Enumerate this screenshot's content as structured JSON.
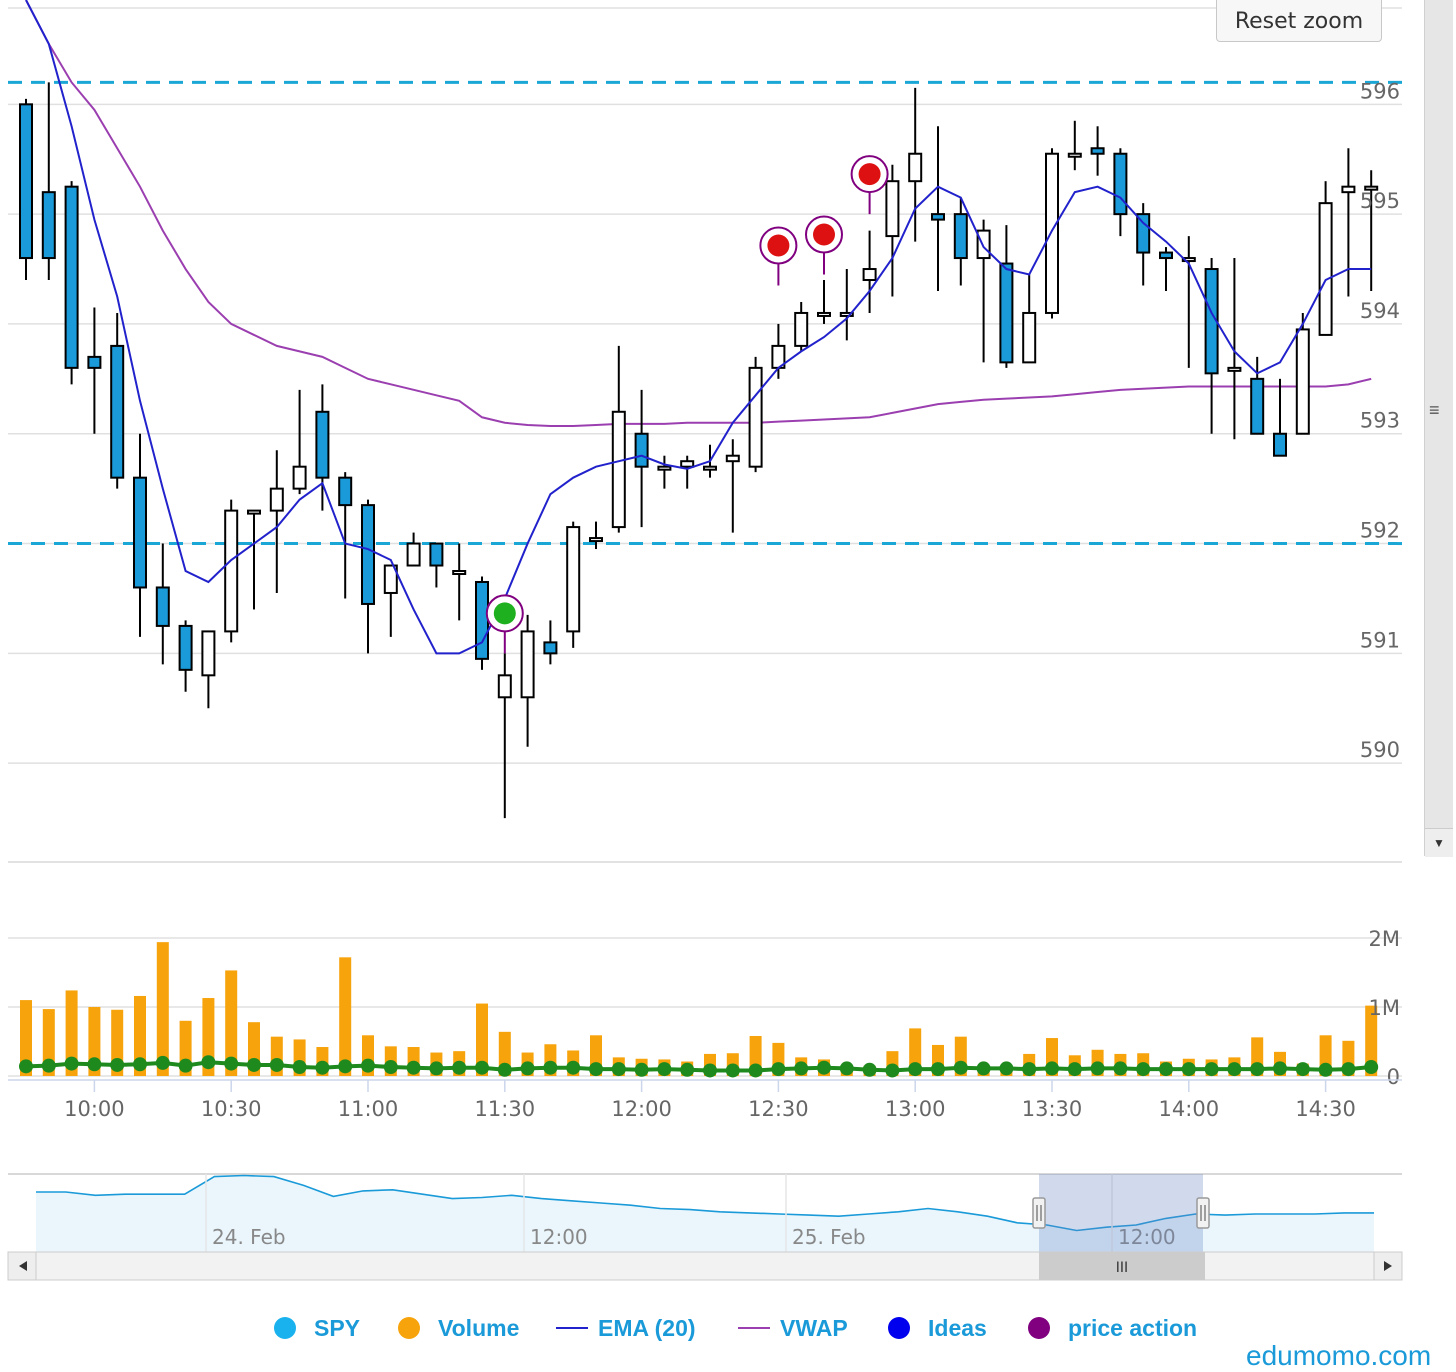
{
  "toolbar": {
    "reset_zoom_label": "Reset zoom"
  },
  "credits": "edumomo.com",
  "colors": {
    "down_candle": "#1a9ad8",
    "up_candle": "#ffffff",
    "ema": "#2222cc",
    "vwap": "#9b3fb0",
    "volume": "#f7a30c",
    "volume_line": "#1e8a1e",
    "level_line": "#1aa7d6",
    "navigator_line": "#1a9ad8"
  },
  "legend": [
    {
      "label": "SPY",
      "symbol": "dot",
      "color": "#1ab2ee"
    },
    {
      "label": "Volume",
      "symbol": "dot",
      "color": "#f7a30c"
    },
    {
      "label": "EMA (20)",
      "symbol": "line",
      "color": "#2222cc"
    },
    {
      "label": "VWAP",
      "symbol": "line",
      "color": "#9b3fb0"
    },
    {
      "label": "Ideas",
      "symbol": "dot",
      "color": "#0000ee"
    },
    {
      "label": "price action",
      "symbol": "dot",
      "color": "#800080"
    }
  ],
  "navigator": {
    "tick_labels": [
      "24. Feb",
      "12:00",
      "25. Feb",
      "12:00"
    ],
    "scroll_grip": "III"
  },
  "vscroll_grip": "≡",
  "chart_data": {
    "type": "candlestick",
    "title": "",
    "interval_minutes": 5,
    "price_axis": {
      "ylim": [
        589.1,
        596.95
      ],
      "ticks": [
        "590",
        "591",
        "592",
        "593",
        "594",
        "595",
        "596"
      ]
    },
    "volume_axis": {
      "ylim": [
        0,
        2000000
      ],
      "ticks": [
        "0",
        "1M",
        "2M"
      ]
    },
    "x_ticks": [
      "10:00",
      "10:30",
      "11:00",
      "11:30",
      "12:00",
      "12:30",
      "13:00",
      "13:30",
      "14:00",
      "14:30"
    ],
    "x_tick_times": [
      "10:00",
      "10:30",
      "11:00",
      "11:30",
      "12:00",
      "12:30",
      "13:00",
      "13:30",
      "14:00",
      "14:30"
    ],
    "horizontal_levels": [
      596.2,
      592.0
    ],
    "candles": {
      "time": [
        "09:45",
        "09:50",
        "09:55",
        "10:00",
        "10:05",
        "10:10",
        "10:15",
        "10:20",
        "10:25",
        "10:30",
        "10:35",
        "10:40",
        "10:45",
        "10:50",
        "10:55",
        "11:00",
        "11:05",
        "11:10",
        "11:15",
        "11:20",
        "11:25",
        "11:30",
        "11:35",
        "11:40",
        "11:45",
        "11:50",
        "11:55",
        "12:00",
        "12:05",
        "12:10",
        "12:15",
        "12:20",
        "12:25",
        "12:30",
        "12:35",
        "12:40",
        "12:45",
        "12:50",
        "12:55",
        "13:00",
        "13:05",
        "13:10",
        "13:15",
        "13:20",
        "13:25",
        "13:30",
        "13:35",
        "13:40",
        "13:45",
        "13:50",
        "13:55",
        "14:00",
        "14:05",
        "14:10",
        "14:15",
        "14:20",
        "14:25",
        "14:30",
        "14:35",
        "14:40"
      ],
      "open": [
        596.0,
        595.2,
        595.25,
        593.7,
        593.8,
        592.6,
        591.6,
        591.25,
        590.8,
        591.2,
        592.3,
        592.3,
        592.5,
        593.2,
        592.6,
        592.35,
        591.55,
        591.8,
        592.0,
        591.75,
        591.65,
        590.6,
        590.6,
        591.1,
        591.2,
        592.05,
        592.15,
        593.0,
        592.7,
        592.7,
        592.7,
        592.75,
        592.7,
        593.6,
        593.8,
        594.1,
        594.1,
        594.4,
        594.8,
        595.3,
        595.0,
        595.0,
        594.6,
        594.55,
        593.65,
        594.1,
        595.55,
        595.6,
        595.55,
        595.0,
        594.65,
        594.6,
        594.5,
        593.6,
        593.5,
        593.0,
        593.0,
        593.9,
        595.2,
        595.25
      ],
      "close": [
        594.6,
        594.6,
        593.6,
        593.6,
        592.6,
        591.6,
        591.25,
        590.85,
        591.2,
        592.3,
        592.3,
        592.5,
        592.7,
        592.6,
        592.35,
        591.45,
        591.8,
        592.0,
        591.8,
        591.75,
        590.95,
        590.8,
        591.2,
        591.0,
        592.15,
        592.05,
        593.2,
        592.7,
        592.7,
        592.75,
        592.7,
        592.8,
        593.6,
        593.8,
        594.1,
        594.1,
        594.1,
        594.5,
        595.3,
        595.55,
        594.95,
        594.6,
        594.85,
        593.65,
        594.1,
        595.55,
        595.55,
        595.55,
        595.0,
        594.65,
        594.6,
        594.6,
        593.55,
        593.6,
        593.0,
        592.8,
        593.95,
        595.1,
        595.25,
        595.25
      ],
      "high": [
        596.05,
        596.2,
        595.3,
        594.15,
        594.1,
        593.0,
        592.0,
        591.3,
        591.2,
        592.4,
        592.3,
        592.85,
        593.4,
        593.45,
        592.65,
        592.4,
        591.65,
        592.1,
        592.0,
        592.0,
        591.7,
        591.0,
        591.35,
        591.3,
        592.2,
        592.2,
        593.8,
        593.4,
        592.8,
        592.8,
        592.9,
        592.95,
        593.7,
        594.0,
        594.2,
        594.4,
        594.5,
        594.85,
        595.45,
        596.15,
        595.8,
        595.15,
        594.95,
        594.9,
        594.45,
        595.6,
        595.85,
        595.8,
        595.6,
        595.1,
        594.7,
        594.8,
        594.6,
        594.6,
        593.7,
        593.5,
        594.1,
        595.3,
        595.6,
        595.4
      ],
      "low": [
        594.4,
        594.4,
        593.45,
        593.0,
        592.5,
        591.15,
        590.9,
        590.65,
        590.5,
        591.1,
        591.4,
        591.55,
        592.45,
        592.3,
        591.5,
        591.0,
        591.15,
        591.8,
        591.6,
        591.3,
        590.85,
        589.5,
        590.15,
        590.9,
        591.05,
        591.95,
        592.1,
        592.15,
        592.5,
        592.5,
        592.6,
        592.1,
        592.65,
        593.5,
        593.75,
        594.0,
        593.85,
        594.1,
        594.25,
        594.75,
        594.3,
        594.35,
        593.65,
        593.6,
        593.65,
        594.05,
        595.4,
        595.35,
        594.8,
        594.35,
        594.3,
        593.6,
        593.0,
        592.95,
        593.0,
        593.0,
        593.45,
        594.85,
        594.25,
        594.3
      ],
      "volume": [
        1100000,
        970000,
        1240000,
        1000000,
        960000,
        1160000,
        1940000,
        800000,
        1130000,
        1530000,
        780000,
        570000,
        530000,
        420000,
        1720000,
        590000,
        430000,
        420000,
        340000,
        360000,
        1050000,
        640000,
        340000,
        460000,
        370000,
        590000,
        270000,
        250000,
        240000,
        210000,
        320000,
        330000,
        580000,
        480000,
        270000,
        240000,
        160000,
        150000,
        360000,
        690000,
        450000,
        570000,
        140000,
        150000,
        320000,
        550000,
        300000,
        380000,
        320000,
        330000,
        210000,
        250000,
        240000,
        270000,
        560000,
        350000,
        180000,
        590000,
        510000,
        1020000
      ]
    },
    "volume_line": [
      140000,
      150000,
      180000,
      170000,
      160000,
      170000,
      190000,
      150000,
      200000,
      180000,
      160000,
      160000,
      130000,
      120000,
      140000,
      150000,
      130000,
      120000,
      110000,
      120000,
      120000,
      90000,
      110000,
      120000,
      120000,
      100000,
      100000,
      90000,
      100000,
      90000,
      80000,
      80000,
      80000,
      100000,
      110000,
      120000,
      110000,
      90000,
      80000,
      100000,
      100000,
      120000,
      110000,
      110000,
      100000,
      110000,
      100000,
      110000,
      110000,
      100000,
      100000,
      100000,
      100000,
      100000,
      100000,
      110000,
      100000,
      90000,
      100000,
      130000
    ],
    "series": [
      {
        "name": "EMA (20)",
        "values": [
          596.95,
          596.55,
          595.8,
          594.95,
          594.25,
          593.3,
          592.5,
          591.75,
          591.65,
          591.85,
          592.0,
          592.15,
          592.4,
          592.55,
          592.0,
          591.95,
          591.85,
          591.4,
          591.0,
          591.0,
          591.1,
          591.5,
          592.0,
          592.45,
          592.6,
          592.7,
          592.75,
          592.8,
          592.72,
          592.68,
          592.75,
          593.1,
          593.35,
          593.6,
          593.75,
          593.88,
          594.05,
          594.3,
          594.6,
          595.05,
          595.25,
          595.15,
          594.7,
          594.5,
          594.45,
          594.85,
          595.2,
          595.25,
          595.15,
          594.92,
          594.75,
          594.55,
          594.1,
          593.75,
          593.55,
          593.65,
          594.0,
          594.4,
          594.5,
          594.5
        ]
      },
      {
        "name": "VWAP",
        "values": [
          596.95,
          596.55,
          596.2,
          595.95,
          595.6,
          595.25,
          594.85,
          594.5,
          594.2,
          594.0,
          593.9,
          593.8,
          593.75,
          593.7,
          593.6,
          593.5,
          593.45,
          593.4,
          593.35,
          593.3,
          593.15,
          593.1,
          593.08,
          593.07,
          593.07,
          593.08,
          593.09,
          593.09,
          593.09,
          593.1,
          593.1,
          593.1,
          593.1,
          593.11,
          593.12,
          593.13,
          593.14,
          593.15,
          593.19,
          593.23,
          593.27,
          593.29,
          593.31,
          593.32,
          593.33,
          593.34,
          593.36,
          593.38,
          593.4,
          593.41,
          593.42,
          593.43,
          593.43,
          593.43,
          593.43,
          593.43,
          593.43,
          593.43,
          593.45,
          593.5
        ]
      }
    ],
    "markers": [
      {
        "time": "11:30",
        "kind": "buy",
        "value": 591.0
      },
      {
        "time": "12:30",
        "kind": "sell",
        "value": 594.35
      },
      {
        "time": "12:40",
        "kind": "sell",
        "value": 594.45
      },
      {
        "time": "12:50",
        "kind": "sell",
        "value": 595.0
      }
    ]
  }
}
